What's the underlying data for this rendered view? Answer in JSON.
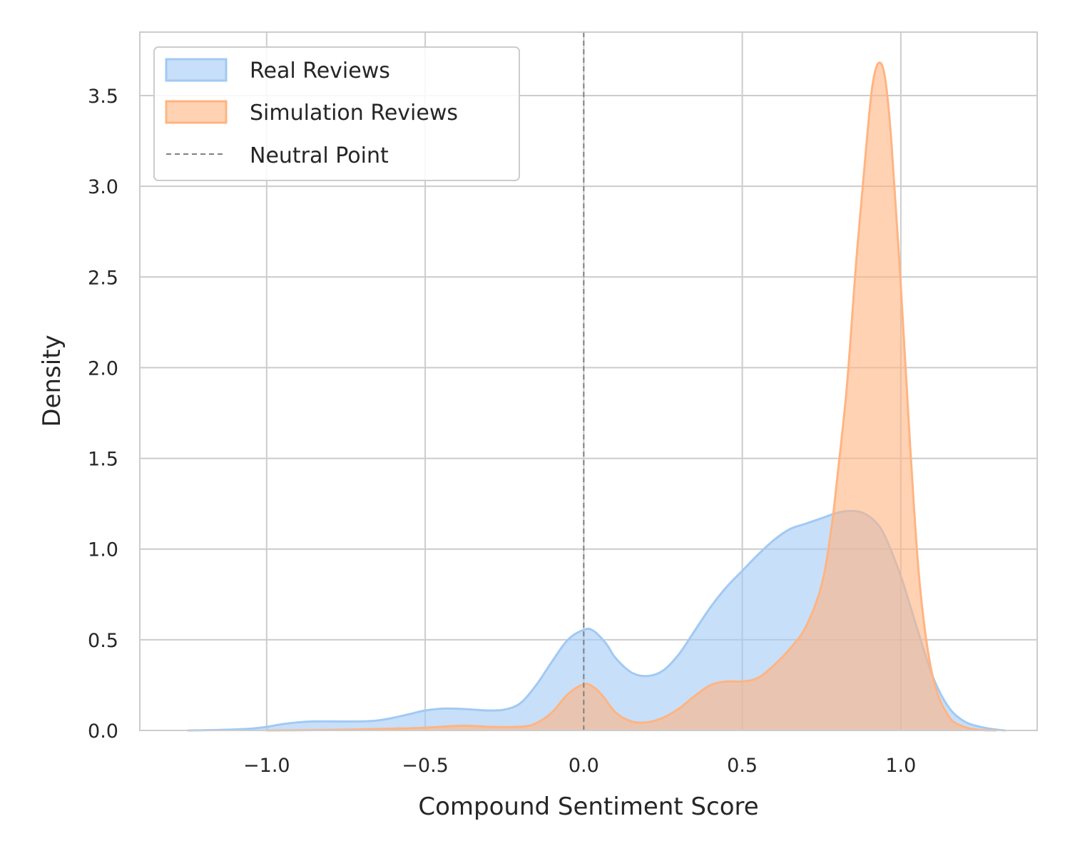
{
  "chart_data": {
    "type": "area",
    "title": "",
    "xlabel": "Compound Sentiment Score",
    "ylabel": "Density",
    "xlim": [
      -1.4,
      1.43
    ],
    "ylim": [
      0,
      3.85
    ],
    "xticks": [
      -1.0,
      -0.5,
      0.0,
      0.5,
      1.0
    ],
    "xtick_labels": [
      "−1.0",
      "−0.5",
      "0.0",
      "0.5",
      "1.0"
    ],
    "yticks": [
      0.0,
      0.5,
      1.0,
      1.5,
      2.0,
      2.5,
      3.0,
      3.5
    ],
    "ytick_labels": [
      "0.0",
      "0.5",
      "1.0",
      "1.5",
      "2.0",
      "2.5",
      "3.0",
      "3.5"
    ],
    "grid": true,
    "legend_position": "top-left",
    "reference_line": {
      "x": 0.0,
      "name": "Neutral Point",
      "color": "#808080",
      "style": "dashed"
    },
    "series": [
      {
        "name": "Real Reviews",
        "color": "#a1c9f4",
        "points": [
          [
            -1.25,
            0.0
          ],
          [
            -1.15,
            0.003
          ],
          [
            -1.05,
            0.01
          ],
          [
            -1.0,
            0.02
          ],
          [
            -0.95,
            0.035
          ],
          [
            -0.9,
            0.045
          ],
          [
            -0.85,
            0.05
          ],
          [
            -0.8,
            0.05
          ],
          [
            -0.7,
            0.05
          ],
          [
            -0.65,
            0.055
          ],
          [
            -0.6,
            0.07
          ],
          [
            -0.55,
            0.09
          ],
          [
            -0.5,
            0.11
          ],
          [
            -0.45,
            0.12
          ],
          [
            -0.4,
            0.12
          ],
          [
            -0.35,
            0.115
          ],
          [
            -0.3,
            0.11
          ],
          [
            -0.25,
            0.115
          ],
          [
            -0.2,
            0.15
          ],
          [
            -0.15,
            0.25
          ],
          [
            -0.1,
            0.38
          ],
          [
            -0.05,
            0.5
          ],
          [
            0.0,
            0.555
          ],
          [
            0.03,
            0.55
          ],
          [
            0.07,
            0.48
          ],
          [
            0.1,
            0.4
          ],
          [
            0.15,
            0.32
          ],
          [
            0.2,
            0.3
          ],
          [
            0.25,
            0.33
          ],
          [
            0.3,
            0.42
          ],
          [
            0.35,
            0.55
          ],
          [
            0.4,
            0.68
          ],
          [
            0.45,
            0.79
          ],
          [
            0.5,
            0.88
          ],
          [
            0.55,
            0.97
          ],
          [
            0.6,
            1.05
          ],
          [
            0.65,
            1.11
          ],
          [
            0.7,
            1.14
          ],
          [
            0.75,
            1.17
          ],
          [
            0.8,
            1.2
          ],
          [
            0.84,
            1.21
          ],
          [
            0.88,
            1.2
          ],
          [
            0.92,
            1.15
          ],
          [
            0.95,
            1.07
          ],
          [
            1.0,
            0.85
          ],
          [
            1.05,
            0.57
          ],
          [
            1.1,
            0.3
          ],
          [
            1.15,
            0.13
          ],
          [
            1.2,
            0.05
          ],
          [
            1.25,
            0.02
          ],
          [
            1.3,
            0.005
          ],
          [
            1.33,
            0.0
          ]
        ]
      },
      {
        "name": "Simulation Reviews",
        "color": "#ffb482",
        "points": [
          [
            -1.0,
            0.0
          ],
          [
            -0.8,
            0.003
          ],
          [
            -0.6,
            0.01
          ],
          [
            -0.5,
            0.015
          ],
          [
            -0.4,
            0.025
          ],
          [
            -0.35,
            0.025
          ],
          [
            -0.3,
            0.02
          ],
          [
            -0.2,
            0.02
          ],
          [
            -0.15,
            0.04
          ],
          [
            -0.1,
            0.1
          ],
          [
            -0.05,
            0.2
          ],
          [
            0.0,
            0.255
          ],
          [
            0.03,
            0.24
          ],
          [
            0.06,
            0.19
          ],
          [
            0.1,
            0.1
          ],
          [
            0.15,
            0.05
          ],
          [
            0.2,
            0.045
          ],
          [
            0.25,
            0.07
          ],
          [
            0.3,
            0.12
          ],
          [
            0.35,
            0.19
          ],
          [
            0.4,
            0.25
          ],
          [
            0.45,
            0.27
          ],
          [
            0.5,
            0.27
          ],
          [
            0.55,
            0.29
          ],
          [
            0.6,
            0.36
          ],
          [
            0.65,
            0.45
          ],
          [
            0.7,
            0.57
          ],
          [
            0.75,
            0.8
          ],
          [
            0.78,
            1.1
          ],
          [
            0.8,
            1.4
          ],
          [
            0.83,
            1.9
          ],
          [
            0.86,
            2.6
          ],
          [
            0.89,
            3.2
          ],
          [
            0.91,
            3.55
          ],
          [
            0.93,
            3.68
          ],
          [
            0.95,
            3.6
          ],
          [
            0.97,
            3.25
          ],
          [
            1.0,
            2.45
          ],
          [
            1.03,
            1.55
          ],
          [
            1.06,
            0.8
          ],
          [
            1.1,
            0.3
          ],
          [
            1.15,
            0.08
          ],
          [
            1.2,
            0.02
          ],
          [
            1.25,
            0.003
          ],
          [
            1.3,
            0.0
          ]
        ]
      }
    ]
  }
}
